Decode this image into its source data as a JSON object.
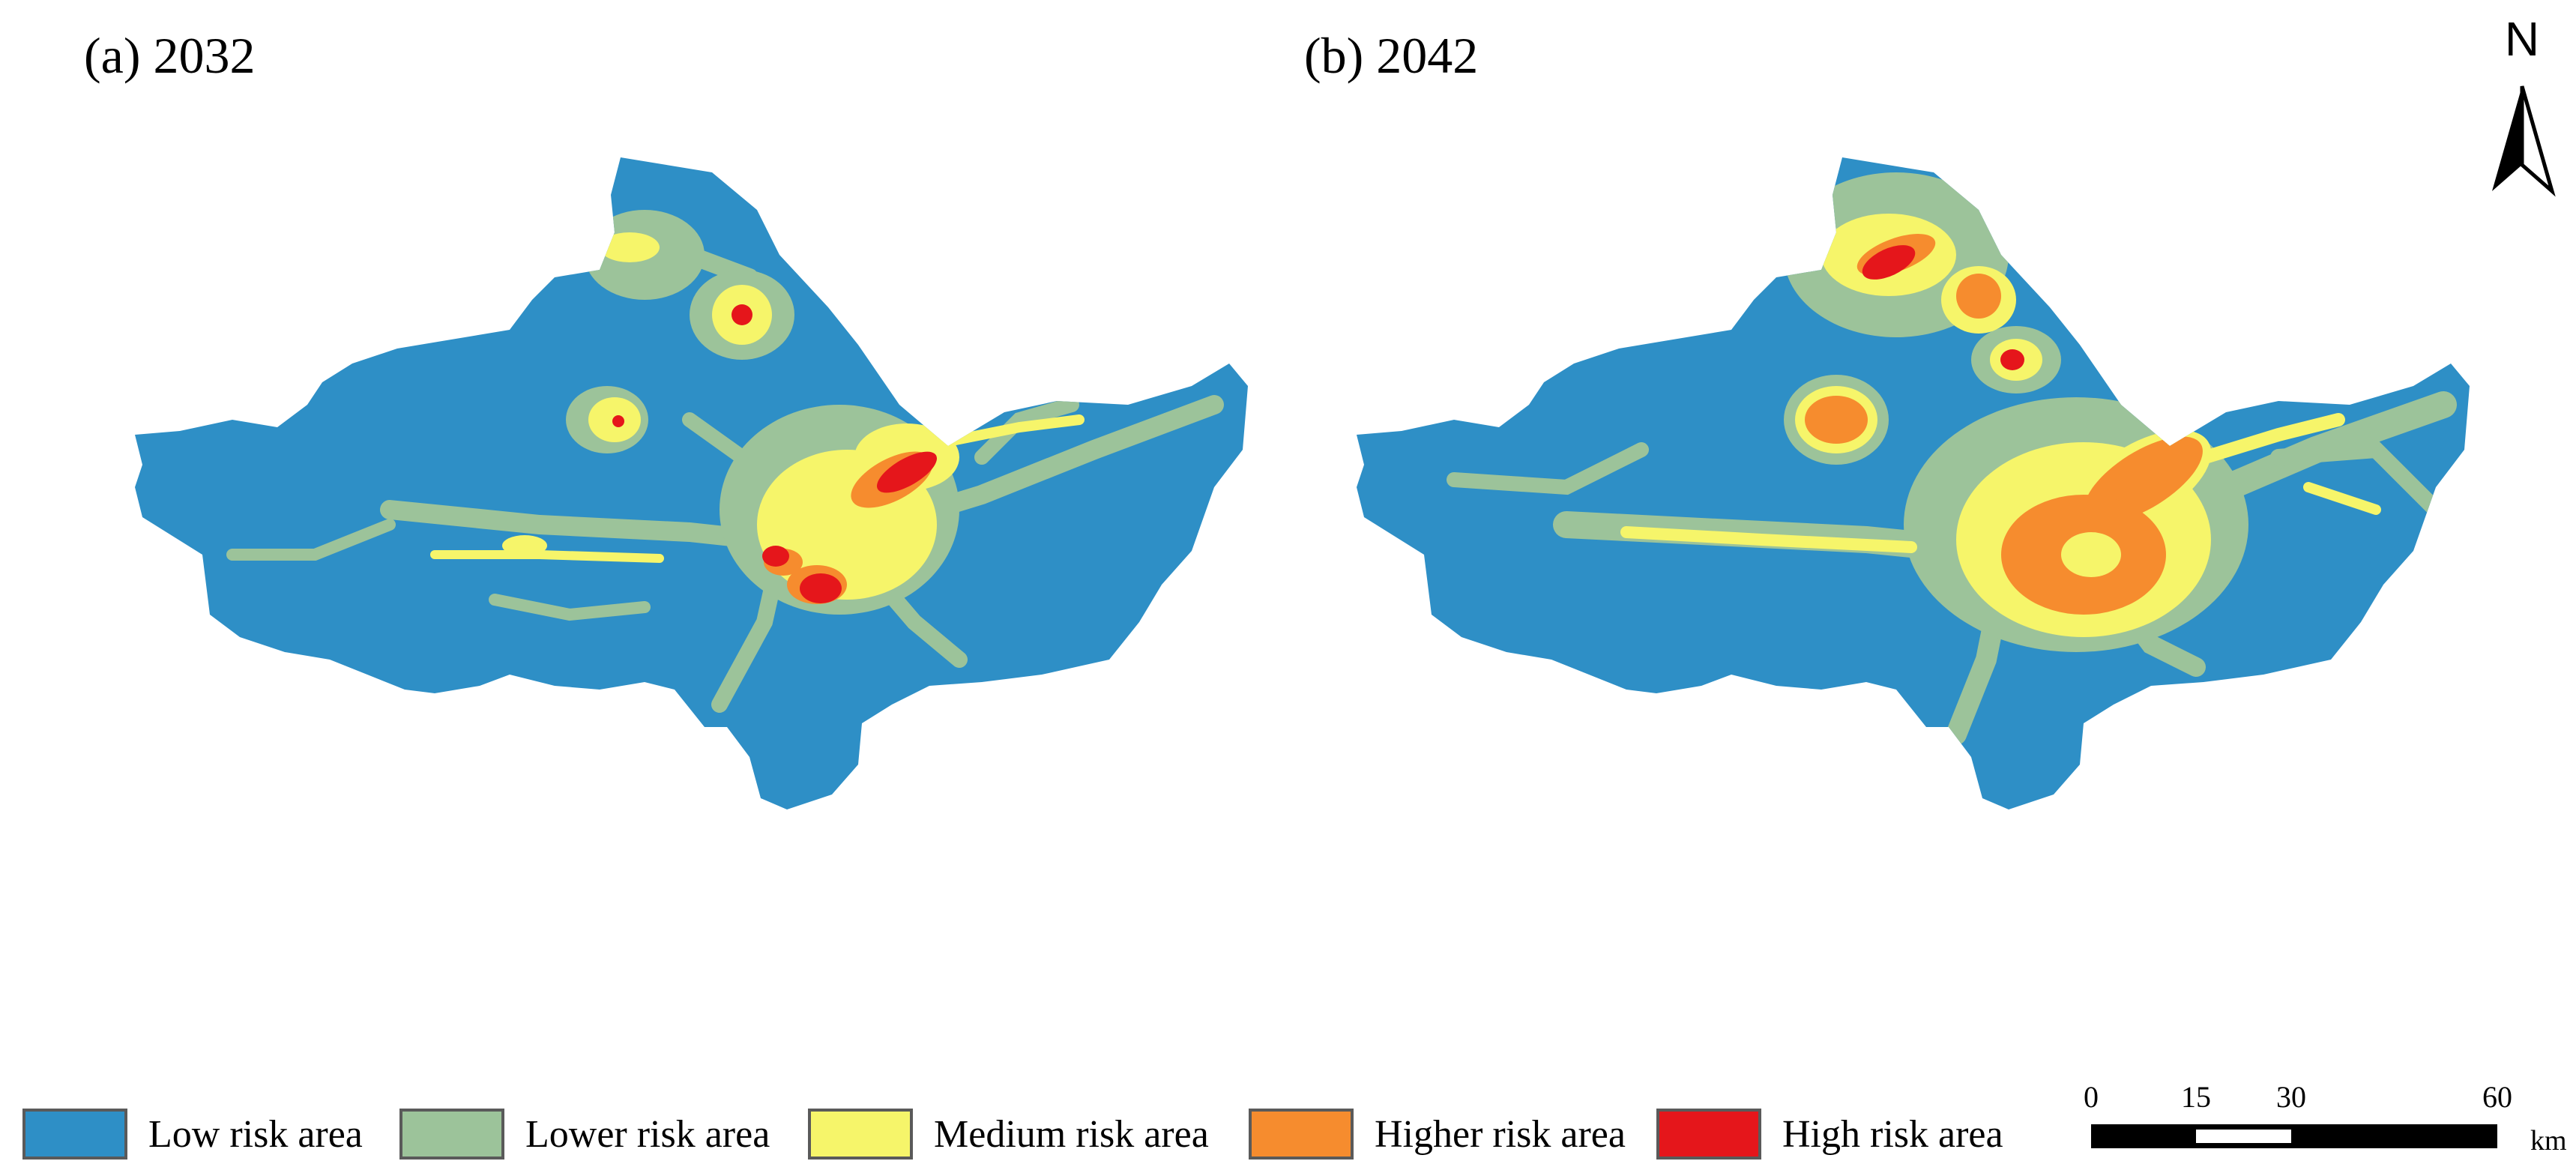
{
  "panels": {
    "a": {
      "title": "(a) 2032"
    },
    "b": {
      "title": "(b) 2042"
    }
  },
  "north_arrow": {
    "letter": "N"
  },
  "legend": {
    "items": [
      {
        "label": "Low risk area",
        "color": "#2e8fc6"
      },
      {
        "label": "Lower risk area",
        "color": "#9cc39a"
      },
      {
        "label": "Medium risk area",
        "color": "#f6f56a"
      },
      {
        "label": "Higher risk area",
        "color": "#f68c2e"
      },
      {
        "label": "High risk area",
        "color": "#e5161b"
      }
    ]
  },
  "scale_bar": {
    "ticks": [
      "0",
      "15",
      "30",
      "60"
    ],
    "unit": "km"
  }
}
